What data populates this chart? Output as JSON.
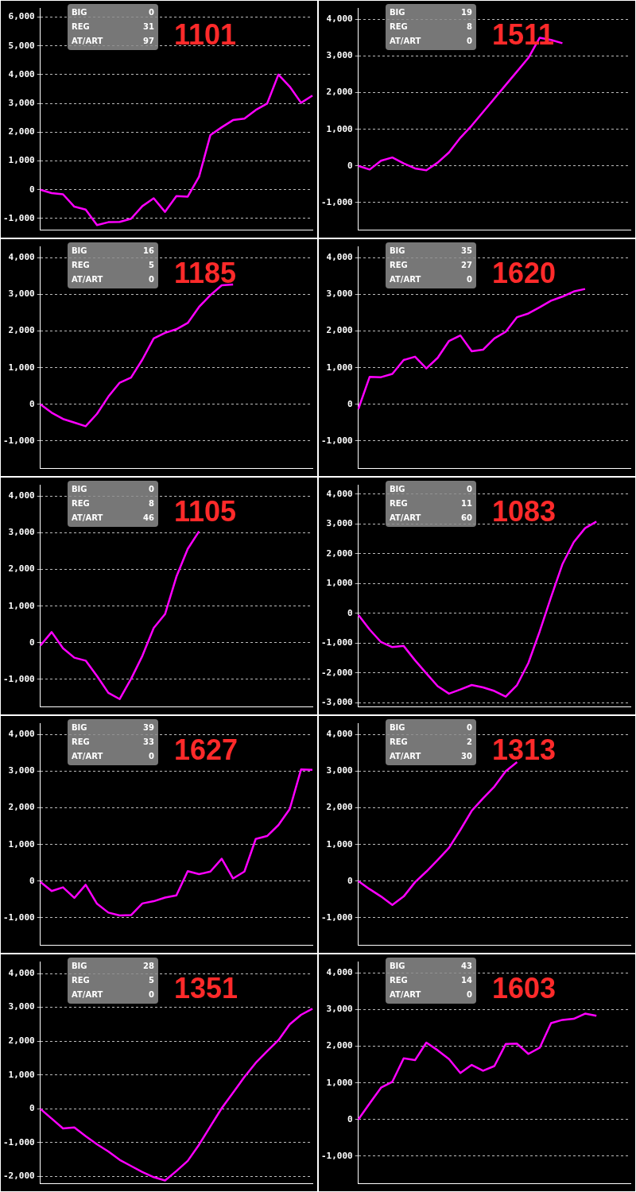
{
  "chart_data": [
    {
      "type": "line",
      "title": "1101",
      "annotations": [
        "BIG",
        "0",
        "REG",
        "31",
        "AT/ART",
        "97"
      ],
      "categories": [
        null,
        null,
        null,
        null,
        null,
        null,
        null,
        null,
        null,
        null,
        null,
        null,
        null,
        null,
        null,
        null,
        null,
        null,
        null,
        null,
        null,
        null,
        null,
        null,
        null
      ],
      "color": "#ff00ff",
      "values": [
        0,
        -120,
        -160,
        -590,
        -690,
        -1230,
        -1130,
        -1120,
        -1010,
        -570,
        -300,
        -770,
        -220,
        -240,
        450,
        1900,
        2170,
        2420,
        2470,
        2770,
        2990,
        4000,
        3580,
        3020,
        3270
      ],
      "ylim": [
        -1400,
        6300
      ],
      "yticks": [
        {
          "value": -1000,
          "label": "-1,000"
        },
        {
          "value": 0,
          "label": "0"
        },
        {
          "value": 1000,
          "label": "1,000"
        },
        {
          "value": 2000,
          "label": "2,000"
        },
        {
          "value": 3000,
          "label": "3,000"
        },
        {
          "value": 4000,
          "label": "4,000"
        },
        {
          "value": 5000,
          "label": "5,000"
        },
        {
          "value": 6000,
          "label": "6,000"
        }
      ],
      "grid": "y",
      "tick_labels": "y",
      "legend": false
    },
    {
      "type": "line",
      "title": "1511",
      "annotations": [
        "BIG",
        "19",
        "REG",
        "8",
        "AT/ART",
        "0"
      ],
      "categories": [
        null,
        null,
        null,
        null,
        null,
        null,
        null,
        null,
        null,
        null,
        null,
        null,
        null,
        null,
        null,
        null,
        null,
        null,
        null,
        null,
        null,
        null,
        null,
        null,
        null
      ],
      "color": "#ff00ff",
      "values": [
        0,
        -100,
        140,
        230,
        70,
        -70,
        -120,
        90,
        370,
        770,
        1100,
        1470,
        1840,
        2210,
        2580,
        2950,
        3500,
        3440,
        3350,
        null,
        null,
        null,
        null,
        null,
        null
      ],
      "ylim": [
        -1750,
        4300
      ],
      "yticks": [
        {
          "value": -1000,
          "label": "-1,000"
        },
        {
          "value": 0,
          "label": "0"
        },
        {
          "value": 1000,
          "label": "1,000"
        },
        {
          "value": 2000,
          "label": "2,000"
        },
        {
          "value": 3000,
          "label": "3,000"
        },
        {
          "value": 4000,
          "label": "4,000"
        }
      ],
      "grid": "y",
      "tick_labels": "y",
      "legend": false
    },
    {
      "type": "line",
      "title": "1185",
      "annotations": [
        "BIG",
        "16",
        "REG",
        "5",
        "AT/ART",
        "0"
      ],
      "categories": [
        null,
        null,
        null,
        null,
        null,
        null,
        null,
        null,
        null,
        null,
        null,
        null,
        null,
        null,
        null,
        null,
        null,
        null,
        null,
        null,
        null,
        null,
        null,
        null,
        null
      ],
      "color": "#ff00ff",
      "values": [
        0,
        -230,
        -400,
        -500,
        -600,
        -260,
        210,
        590,
        730,
        1220,
        1800,
        1950,
        2050,
        2220,
        2660,
        2980,
        3250,
        3270,
        null,
        null,
        null,
        null,
        null,
        null,
        null
      ],
      "ylim": [
        -1750,
        4300
      ],
      "yticks": [
        {
          "value": -1000,
          "label": "-1,000"
        },
        {
          "value": 0,
          "label": "0"
        },
        {
          "value": 1000,
          "label": "1,000"
        },
        {
          "value": 2000,
          "label": "2,000"
        },
        {
          "value": 3000,
          "label": "3,000"
        },
        {
          "value": 4000,
          "label": "4,000"
        }
      ],
      "grid": "y",
      "tick_labels": "y",
      "legend": false
    },
    {
      "type": "line",
      "title": "1620",
      "annotations": [
        "BIG",
        "35",
        "REG",
        "27",
        "AT/ART",
        "0"
      ],
      "categories": [
        null,
        null,
        null,
        null,
        null,
        null,
        null,
        null,
        null,
        null,
        null,
        null,
        null,
        null,
        null,
        null,
        null,
        null,
        null,
        null,
        null,
        null,
        null,
        null,
        null
      ],
      "color": "#ff00ff",
      "values": [
        -130,
        750,
        740,
        830,
        1210,
        1300,
        980,
        1270,
        1730,
        1880,
        1450,
        1490,
        1800,
        1980,
        2380,
        2480,
        2650,
        2830,
        2940,
        3080,
        3150,
        null,
        null,
        null,
        null
      ],
      "ylim": [
        -1750,
        4300
      ],
      "yticks": [
        {
          "value": -1000,
          "label": "-1,000"
        },
        {
          "value": 0,
          "label": "0"
        },
        {
          "value": 1000,
          "label": "1,000"
        },
        {
          "value": 2000,
          "label": "2,000"
        },
        {
          "value": 3000,
          "label": "3,000"
        },
        {
          "value": 4000,
          "label": "4,000"
        }
      ],
      "grid": "y",
      "tick_labels": "y",
      "legend": false
    },
    {
      "type": "line",
      "title": "1105",
      "annotations": [
        "BIG",
        "0",
        "REG",
        "8",
        "AT/ART",
        "46"
      ],
      "categories": [
        null,
        null,
        null,
        null,
        null,
        null,
        null,
        null,
        null,
        null,
        null,
        null,
        null,
        null,
        null,
        null,
        null,
        null,
        null,
        null,
        null,
        null,
        null,
        null,
        null
      ],
      "color": "#ff00ff",
      "values": [
        -80,
        290,
        -150,
        -410,
        -490,
        -910,
        -1370,
        -1540,
        -990,
        -360,
        400,
        780,
        1800,
        2560,
        3040,
        null,
        null,
        null,
        null,
        null,
        null,
        null,
        null,
        null,
        null
      ],
      "ylim": [
        -1750,
        4300
      ],
      "yticks": [
        {
          "value": -1000,
          "label": "-1,000"
        },
        {
          "value": 0,
          "label": "0"
        },
        {
          "value": 1000,
          "label": "1,000"
        },
        {
          "value": 2000,
          "label": "2,000"
        },
        {
          "value": 3000,
          "label": "3,000"
        },
        {
          "value": 4000,
          "label": "4,000"
        }
      ],
      "grid": "y",
      "tick_labels": "y",
      "legend": false
    },
    {
      "type": "line",
      "title": "1083",
      "annotations": [
        "BIG",
        "0",
        "REG",
        "11",
        "AT/ART",
        "60"
      ],
      "categories": [
        null,
        null,
        null,
        null,
        null,
        null,
        null,
        null,
        null,
        null,
        null,
        null,
        null,
        null,
        null,
        null,
        null,
        null,
        null,
        null,
        null,
        null,
        null,
        null,
        null
      ],
      "color": "#ff00ff",
      "values": [
        -50,
        -540,
        -960,
        -1130,
        -1090,
        -1570,
        -2010,
        -2440,
        -2690,
        -2550,
        -2400,
        -2480,
        -2600,
        -2790,
        -2400,
        -1660,
        -600,
        550,
        1650,
        2390,
        2860,
        3080,
        null,
        null,
        null
      ],
      "ylim": [
        -3130,
        4300
      ],
      "yticks": [
        {
          "value": -3000,
          "label": "-3,000"
        },
        {
          "value": -2000,
          "label": "-2,000"
        },
        {
          "value": -1000,
          "label": "-1,000"
        },
        {
          "value": 0,
          "label": "0"
        },
        {
          "value": 1000,
          "label": "1,000"
        },
        {
          "value": 2000,
          "label": "2,000"
        },
        {
          "value": 3000,
          "label": "3,000"
        },
        {
          "value": 4000,
          "label": "4,000"
        }
      ],
      "grid": "y",
      "tick_labels": "y",
      "legend": false
    },
    {
      "type": "line",
      "title": "1627",
      "annotations": [
        "BIG",
        "39",
        "REG",
        "33",
        "AT/ART",
        "0"
      ],
      "categories": [
        null,
        null,
        null,
        null,
        null,
        null,
        null,
        null,
        null,
        null,
        null,
        null,
        null,
        null,
        null,
        null,
        null,
        null,
        null,
        null,
        null,
        null,
        null,
        null,
        null
      ],
      "color": "#ff00ff",
      "values": [
        -20,
        -270,
        -170,
        -460,
        -100,
        -620,
        -860,
        -940,
        -930,
        -610,
        -550,
        -450,
        -390,
        270,
        190,
        260,
        610,
        70,
        260,
        1150,
        1230,
        1530,
        1970,
        3050,
        3040
      ],
      "ylim": [
        -1750,
        4300
      ],
      "yticks": [
        {
          "value": -1000,
          "label": "-1,000"
        },
        {
          "value": 0,
          "label": "0"
        },
        {
          "value": 1000,
          "label": "1,000"
        },
        {
          "value": 2000,
          "label": "2,000"
        },
        {
          "value": 3000,
          "label": "3,000"
        },
        {
          "value": 4000,
          "label": "4,000"
        }
      ],
      "grid": "y",
      "tick_labels": "y",
      "legend": false
    },
    {
      "type": "line",
      "title": "1313",
      "annotations": [
        "BIG",
        "0",
        "REG",
        "2",
        "AT/ART",
        "30"
      ],
      "categories": [
        null,
        null,
        null,
        null,
        null,
        null,
        null,
        null,
        null,
        null,
        null,
        null,
        null,
        null,
        null,
        null,
        null,
        null,
        null,
        null,
        null,
        null,
        null,
        null,
        null
      ],
      "color": "#ff00ff",
      "values": [
        0,
        -220,
        -420,
        -650,
        -420,
        -30,
        260,
        580,
        910,
        1400,
        1920,
        2260,
        2580,
        3000,
        3250,
        null,
        null,
        null,
        null,
        null,
        null,
        null,
        null,
        null,
        null
      ],
      "ylim": [
        -1750,
        4300
      ],
      "yticks": [
        {
          "value": -1000,
          "label": "-1,000"
        },
        {
          "value": 0,
          "label": "0"
        },
        {
          "value": 1000,
          "label": "1,000"
        },
        {
          "value": 2000,
          "label": "2,000"
        },
        {
          "value": 3000,
          "label": "3,000"
        },
        {
          "value": 4000,
          "label": "4,000"
        }
      ],
      "grid": "y",
      "tick_labels": "y",
      "legend": false
    },
    {
      "type": "line",
      "title": "1351",
      "annotations": [
        "BIG",
        "28",
        "REG",
        "5",
        "AT/ART",
        "0"
      ],
      "categories": [
        null,
        null,
        null,
        null,
        null,
        null,
        null,
        null,
        null,
        null,
        null,
        null,
        null,
        null,
        null,
        null,
        null,
        null,
        null,
        null,
        null,
        null,
        null,
        null,
        null
      ],
      "color": "#ff00ff",
      "values": [
        0,
        -290,
        -580,
        -550,
        -810,
        -1050,
        -1260,
        -1510,
        -1690,
        -1870,
        -2020,
        -2120,
        -1840,
        -1540,
        -1060,
        -520,
        20,
        480,
        940,
        1360,
        1700,
        2030,
        2500,
        2780,
        2960
      ],
      "ylim": [
        -2210,
        4340
      ],
      "yticks": [
        {
          "value": -2000,
          "label": "-2,000"
        },
        {
          "value": -1000,
          "label": "-1,000"
        },
        {
          "value": 0,
          "label": "0"
        },
        {
          "value": 1000,
          "label": "1,000"
        },
        {
          "value": 2000,
          "label": "2,000"
        },
        {
          "value": 3000,
          "label": "3,000"
        },
        {
          "value": 4000,
          "label": "4,000"
        }
      ],
      "grid": "y",
      "tick_labels": "y",
      "legend": false
    },
    {
      "type": "line",
      "title": "1603",
      "annotations": [
        "BIG",
        "43",
        "REG",
        "14",
        "AT/ART",
        "0"
      ],
      "categories": [
        null,
        null,
        null,
        null,
        null,
        null,
        null,
        null,
        null,
        null,
        null,
        null,
        null,
        null,
        null,
        null,
        null,
        null,
        null,
        null,
        null,
        null,
        null,
        null,
        null
      ],
      "color": "#ff00ff",
      "values": [
        0,
        440,
        870,
        1030,
        1670,
        1620,
        2100,
        1890,
        1650,
        1270,
        1490,
        1330,
        1460,
        2060,
        2070,
        1790,
        1960,
        2630,
        2720,
        2750,
        2890,
        2830,
        null,
        null,
        null
      ],
      "ylim": [
        -1750,
        4300
      ],
      "yticks": [
        {
          "value": -1000,
          "label": "-1,000"
        },
        {
          "value": 0,
          "label": "0"
        },
        {
          "value": 1000,
          "label": "1,000"
        },
        {
          "value": 2000,
          "label": "2,000"
        },
        {
          "value": 3000,
          "label": "3,000"
        },
        {
          "value": 4000,
          "label": "4,000"
        }
      ],
      "grid": "y",
      "tick_labels": "y",
      "legend": false
    }
  ]
}
